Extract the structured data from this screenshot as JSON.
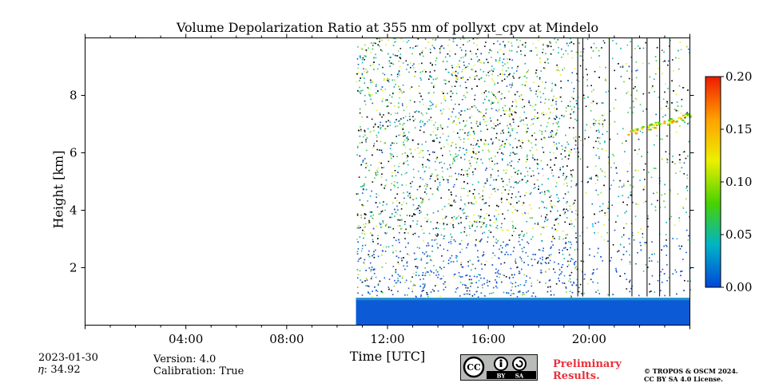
{
  "chart_data": {
    "type": "heatmap",
    "title": "Volume Depolarization Ratio at 355 nm of pollyxt_cpv at Mindelo",
    "xlabel": "Time [UTC]",
    "ylabel": "Height [km]",
    "x_ticks": [
      "04:00",
      "08:00",
      "12:00",
      "16:00",
      "20:00"
    ],
    "x_tick_hours": [
      4,
      8,
      12,
      16,
      20
    ],
    "xlim_hours": [
      0,
      24
    ],
    "y_ticks": [
      "2",
      "4",
      "6",
      "8"
    ],
    "y_tick_values": [
      2,
      4,
      6,
      8
    ],
    "ylim_km": [
      0,
      10
    ],
    "data_start_hour": 10.75,
    "colorbar": {
      "ticks": [
        "0.00",
        "0.05",
        "0.10",
        "0.15",
        "0.20"
      ],
      "tick_values": [
        0,
        0.05,
        0.1,
        0.15,
        0.2
      ],
      "range": [
        0,
        0.2
      ],
      "colors": [
        "#0047d9",
        "#00b3c8",
        "#49d200",
        "#ecf000",
        "#ff9f00",
        "#ee1a00"
      ]
    }
  },
  "info": {
    "date": "2023-01-30",
    "eta": "𝜂: 34.92",
    "version": "Version: 4.0",
    "calibration": "Calibration: True"
  },
  "license": {
    "cc_text": "CC",
    "by_text": "BY",
    "sa_text": "SA",
    "preliminary_line1": "Preliminary",
    "preliminary_line2": "Results.",
    "copyright_line1": "© TROPOS & OSCM 2024.",
    "copyright_line2": "CC BY SA 4.0 License."
  }
}
